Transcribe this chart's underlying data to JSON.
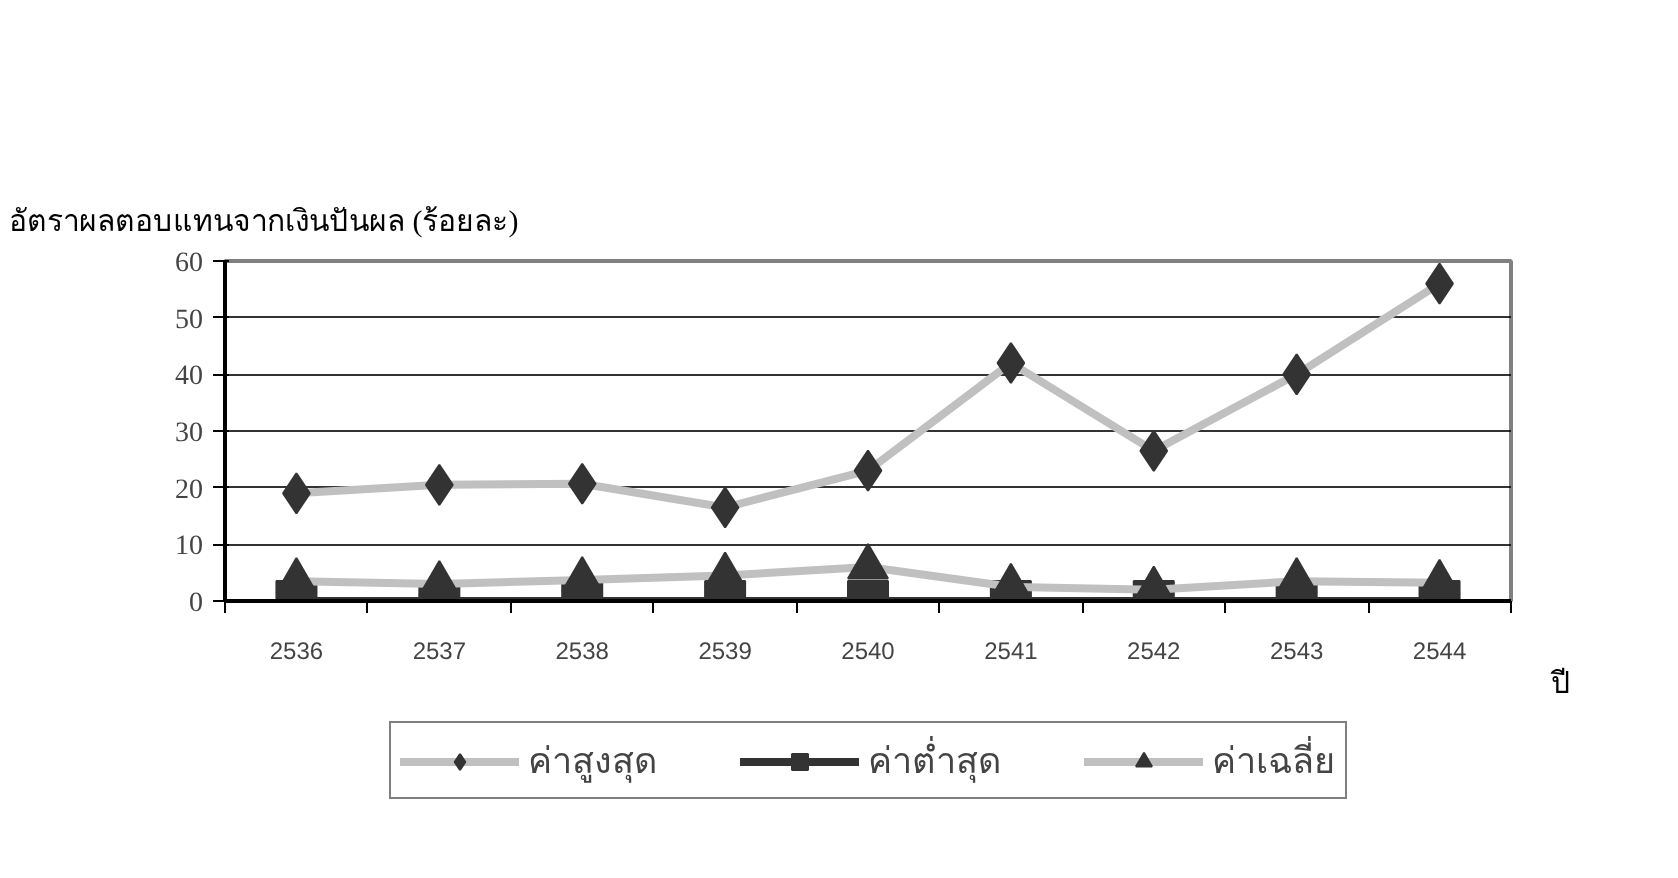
{
  "chart_data": {
    "type": "line",
    "ylabel": "อัตราผลตอบแทนจากเงินปันผล (ร้อยละ)",
    "xlabel": "ปี",
    "categories": [
      "2536",
      "2537",
      "2538",
      "2539",
      "2540",
      "2541",
      "2542",
      "2543",
      "2544"
    ],
    "ylim": [
      0,
      60
    ],
    "yticks": [
      0,
      10,
      20,
      30,
      40,
      50,
      60
    ],
    "grid": "y",
    "legend": "bottom",
    "series": [
      {
        "name": "ค่าสูงสุด",
        "color": "#c0c0c0",
        "marker": "diamond",
        "values": [
          19,
          20.5,
          20.7,
          16.5,
          23,
          42,
          26.5,
          40,
          56
        ]
      },
      {
        "name": "ค่าต่ำสุด",
        "color": "#333333",
        "marker": "square",
        "values": [
          0,
          0,
          0,
          0,
          0,
          0,
          0,
          0,
          0
        ]
      },
      {
        "name": "ค่าเฉลี่ย",
        "color": "#c0c0c0",
        "marker": "triangle",
        "values": [
          3.5,
          3,
          3.7,
          4.5,
          6,
          2.5,
          2,
          3.5,
          3.2
        ]
      }
    ]
  }
}
